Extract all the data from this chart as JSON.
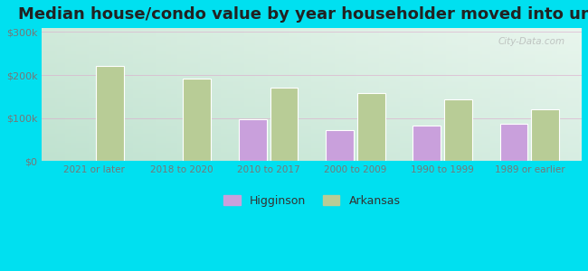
{
  "title": "Median house/condo value by year householder moved into unit",
  "categories": [
    "2021 or later",
    "2018 to 2020",
    "2010 to 2017",
    "2000 to 2009",
    "1990 to 1999",
    "1989 or earlier"
  ],
  "higginson_values": [
    null,
    null,
    98000,
    72000,
    82000,
    87000
  ],
  "arkansas_values": [
    222000,
    192000,
    170000,
    158000,
    143000,
    120000
  ],
  "higginson_color": "#c9a0dc",
  "arkansas_color": "#b8cc96",
  "background_outer": "#00e0f0",
  "background_inner_top_left": "#d0eedd",
  "background_inner_top_right": "#e8f5e8",
  "background_inner_bottom": "#e0f5e8",
  "yticks": [
    0,
    100000,
    200000,
    300000
  ],
  "ytick_labels": [
    "$0",
    "$100k",
    "$200k",
    "$300k"
  ],
  "ylim": [
    0,
    310000
  ],
  "bar_width": 0.32,
  "title_fontsize": 13,
  "tick_color": "#777777",
  "watermark": "City-Data.com",
  "legend_marker_color_higg": "#c9a0dc",
  "legend_marker_color_ark": "#b8cc96"
}
